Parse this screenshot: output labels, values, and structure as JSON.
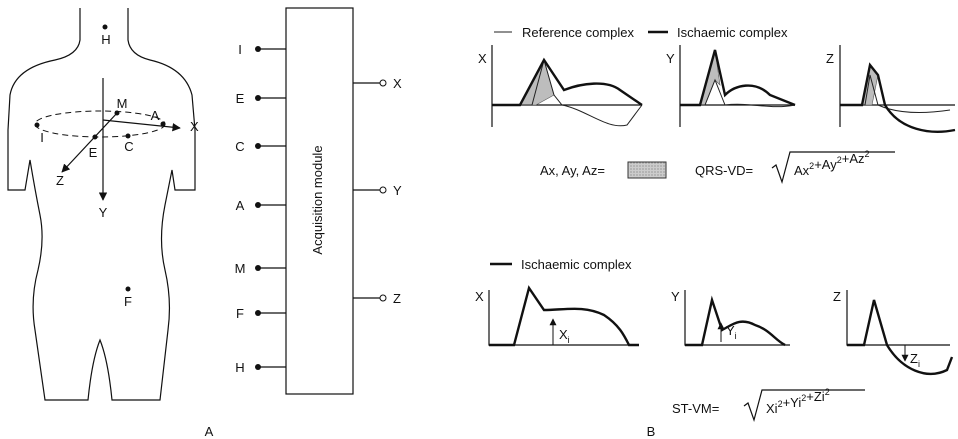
{
  "panel_a": {
    "label": "A",
    "torso_points": {
      "head": "H",
      "m": "M",
      "i": "I",
      "a": "A",
      "e": "E",
      "c": "C",
      "f": "F"
    },
    "axes": {
      "x": "X",
      "y": "Y",
      "z": "Z"
    },
    "module": {
      "title": "Acquisition module",
      "inputs": [
        "I",
        "E",
        "C",
        "A",
        "M",
        "F",
        "H"
      ],
      "outputs": [
        "X",
        "Y",
        "Z"
      ]
    }
  },
  "panel_b": {
    "label": "B",
    "qrs": {
      "legend": [
        "Reference complex",
        "Ischaemic complex"
      ],
      "plots": [
        "X",
        "Y",
        "Z"
      ],
      "area_label": "Ax, Ay, Az=",
      "formula_name": "QRS-VD=",
      "terms": [
        {
          "op": "",
          "base": "Ax",
          "exp": "2"
        },
        {
          "op": "+",
          "base": "Ay",
          "exp": "2"
        },
        {
          "op": "+",
          "base": "Az",
          "exp": "2"
        }
      ]
    },
    "st": {
      "legend": "Ischaemic complex",
      "plots": [
        "X",
        "Y",
        "Z"
      ],
      "markers": [
        {
          "base": "X",
          "sub": "i"
        },
        {
          "base": "Y",
          "sub": "i"
        },
        {
          "base": "Z",
          "sub": "i"
        }
      ],
      "formula_name": "ST-VM=",
      "terms": [
        {
          "op": "",
          "base": "Xi",
          "exp": "2"
        },
        {
          "op": "+",
          "base": "Yi",
          "exp": "2"
        },
        {
          "op": "+",
          "base": "Zi",
          "exp": "2"
        }
      ]
    }
  }
}
